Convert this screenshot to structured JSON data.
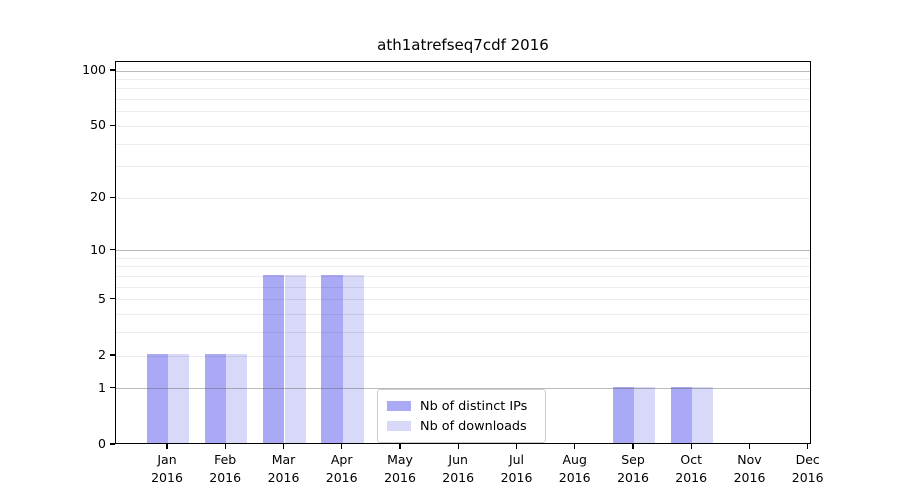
{
  "chart_data": {
    "type": "bar",
    "title": "ath1atrefseq7cdf 2016",
    "categories": [
      "Jan",
      "Feb",
      "Mar",
      "Apr",
      "May",
      "Jun",
      "Jul",
      "Aug",
      "Sep",
      "Oct",
      "Nov",
      "Dec"
    ],
    "x_axis": {
      "year": "2016"
    },
    "y_axis": {
      "scale": "log10(1+x)",
      "ylim": [
        0,
        112
      ],
      "ticks": [
        0,
        1,
        2,
        5,
        10,
        20,
        50,
        100
      ],
      "major_gridlines": [
        1,
        10,
        100
      ],
      "minor_gridlines": [
        2,
        3,
        4,
        5,
        6,
        7,
        8,
        9,
        20,
        30,
        40,
        50,
        60,
        70,
        80,
        90
      ]
    },
    "series": [
      {
        "name": "Nb of distinct IPs",
        "color": "#a9a9f6",
        "values": [
          2,
          2,
          7,
          7,
          0,
          0,
          0,
          0,
          1,
          1,
          0,
          0
        ]
      },
      {
        "name": "Nb of downloads",
        "color": "#d8d8f8",
        "values": [
          2,
          2,
          7,
          7,
          0,
          0,
          0,
          0,
          1,
          1,
          0,
          0
        ]
      }
    ],
    "legend": {
      "position": "lower center",
      "labels": [
        "Nb of distinct IPs",
        "Nb of downloads"
      ]
    }
  }
}
